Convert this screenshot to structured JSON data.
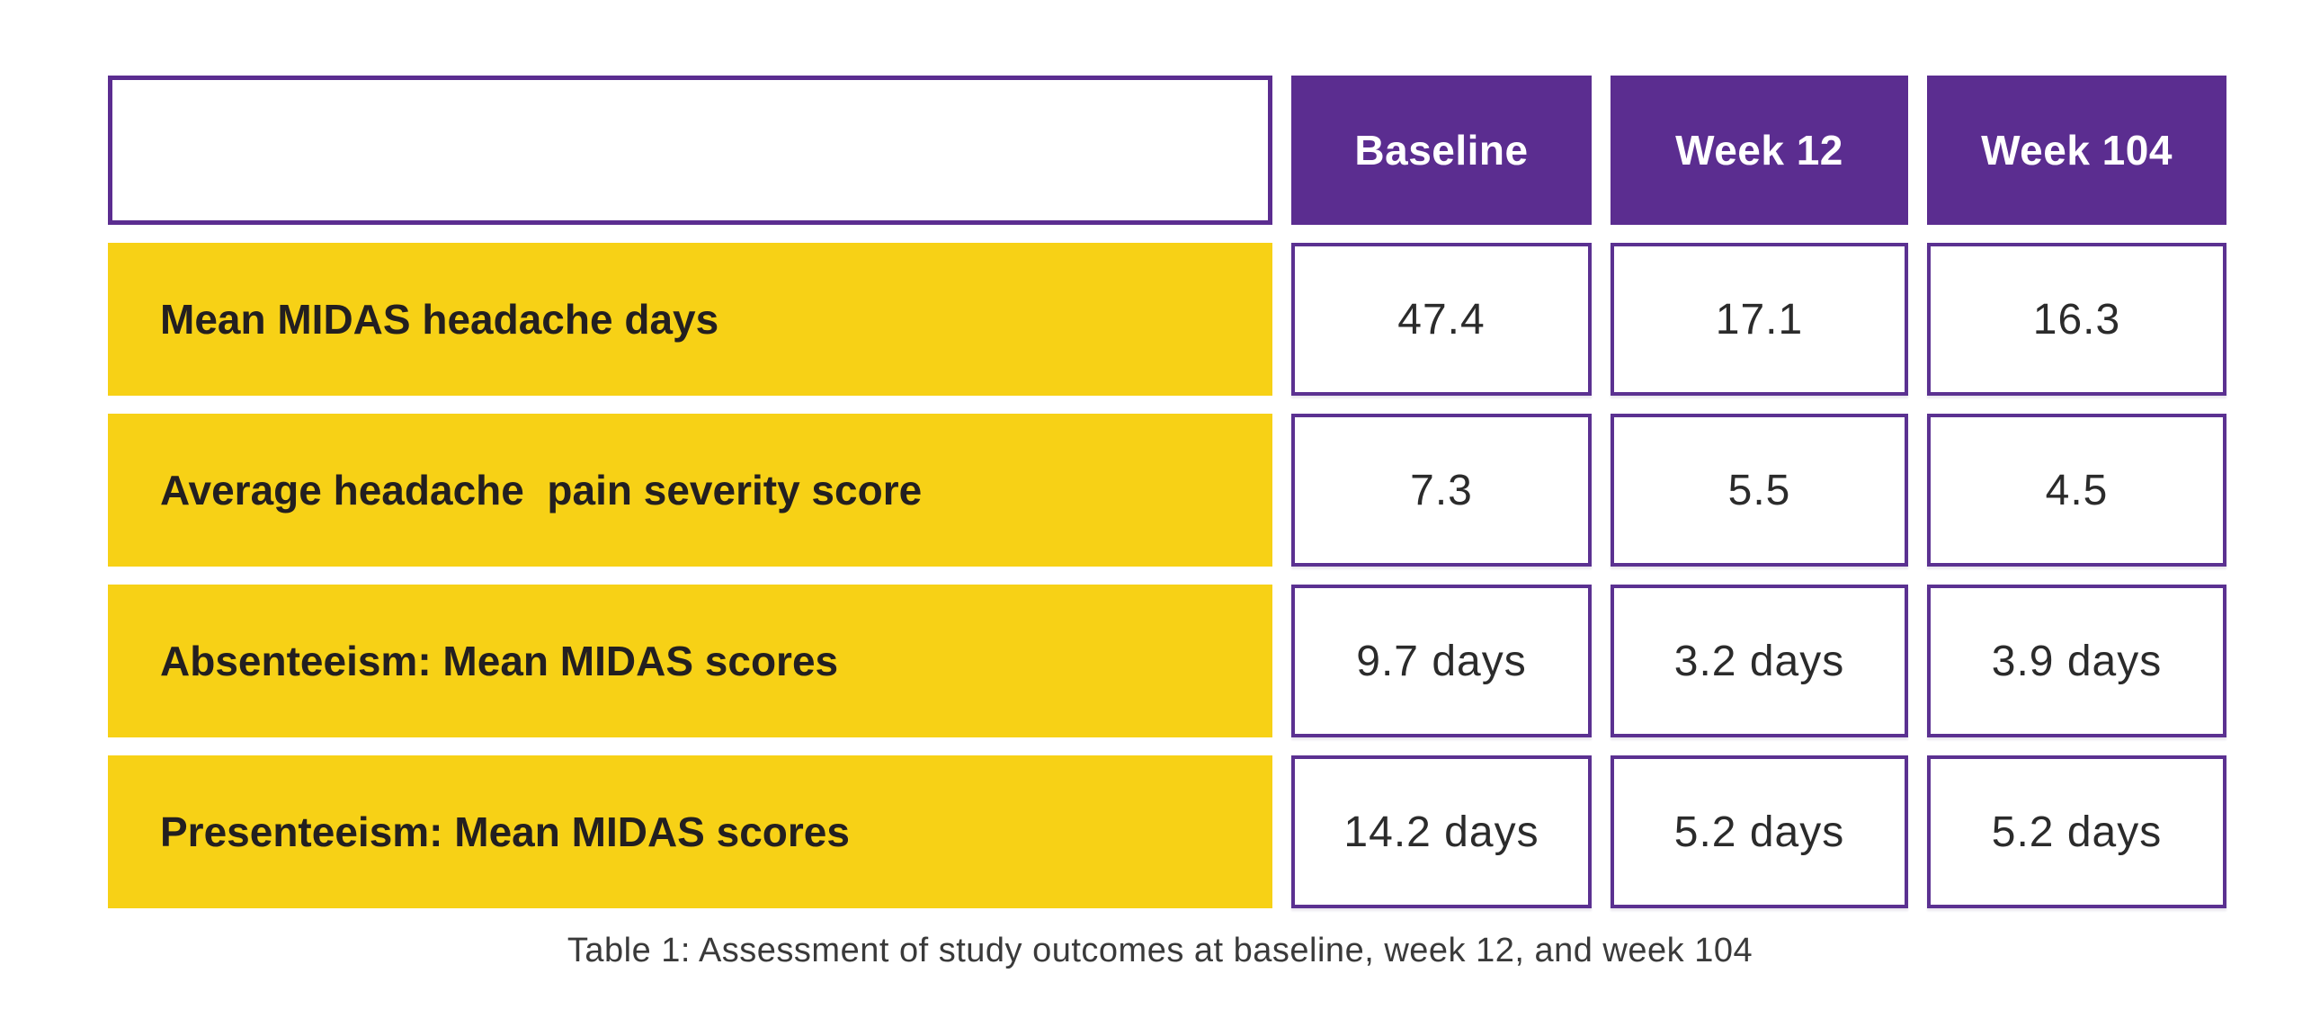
{
  "colors": {
    "header_purple": "#5b2d90",
    "row_yellow": "#f7d116",
    "cell_border_purple": "#5b3191",
    "header_text": "#ffffff",
    "label_text": "#231f20",
    "value_text": "#2b2b2b",
    "caption_text": "#3a3a3a",
    "background": "#ffffff"
  },
  "table": {
    "columns": [
      "Baseline",
      "Week 12",
      "Week 104"
    ],
    "rows": [
      {
        "label": "Mean MIDAS headache days",
        "values": [
          "47.4",
          "17.1",
          "16.3"
        ]
      },
      {
        "label": "Average headache  pain severity score",
        "values": [
          "7.3",
          "5.5",
          "4.5"
        ]
      },
      {
        "label": "Absenteeism: Mean MIDAS scores",
        "values": [
          "9.7 days",
          "3.2 days",
          "3.9 days"
        ]
      },
      {
        "label": "Presenteeism: Mean MIDAS scores",
        "values": [
          "14.2 days",
          "5.2 days",
          "5.2 days"
        ]
      }
    ],
    "caption": "Table 1: Assessment of study outcomes at baseline, week 12, and week 104"
  },
  "chart_data": {
    "type": "table",
    "title": "Table 1: Assessment of study outcomes at baseline, week 12, and week 104",
    "columns": [
      "",
      "Baseline",
      "Week 12",
      "Week 104"
    ],
    "rows": [
      [
        "Mean MIDAS headache days",
        "47.4",
        "17.1",
        "16.3"
      ],
      [
        "Average headache  pain severity score",
        "7.3",
        "5.5",
        "4.5"
      ],
      [
        "Absenteeism: Mean MIDAS scores",
        "9.7 days",
        "3.2 days",
        "3.9 days"
      ],
      [
        "Presenteeism: Mean MIDAS scores",
        "14.2 days",
        "5.2 days",
        "5.2 days"
      ]
    ],
    "numeric_values": {
      "mean_midas_headache_days": [
        47.4,
        17.1,
        16.3
      ],
      "average_headache_pain_severity_score": [
        7.3,
        5.5,
        4.5
      ],
      "absenteeism_mean_midas_scores_days": [
        9.7,
        3.2,
        3.9
      ],
      "presenteeism_mean_midas_scores_days": [
        14.2,
        5.2,
        5.2
      ]
    },
    "layout": {
      "header_fill": "#5b2d90",
      "row_label_fill": "#f7d116",
      "grid": "gapped-boxes",
      "legend": "none"
    }
  }
}
